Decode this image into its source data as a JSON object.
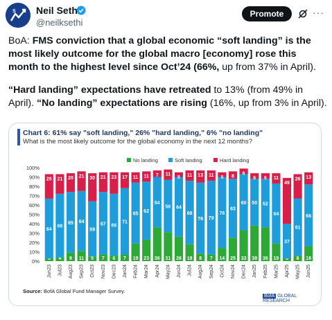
{
  "header": {
    "author_name": "Neil Sethi",
    "author_handle": "@neilksethi",
    "promote_label": "Promote",
    "more_label": "···"
  },
  "tweet": {
    "p1_pre": "BoA: ",
    "p1_bold1": "FMS conviction that a global economic “soft landing” is the most likely outcome for the global macro [economy] rose this month to the  highest level since Oct’24 (66%,",
    "p1_post": " up from 37%  in April).",
    "p2_bold1": "“Hard landing” expectations have retreated",
    "p2_mid": " to 13% (from 49% in April).  ",
    "p2_bold2": "“No landing” expectations are rising",
    "p2_post": " (16%, up from 3% in April)."
  },
  "chart_card": {
    "title": "Chart 6: 61% say \"soft landing,\" 26% \"hard landing,\" 6% \"no landing\"",
    "subtitle": "What is the most likely outcome for the global economy in the next 12 months?",
    "source_label": "Source:",
    "source_text": " BofA Global Fund Manager Survey.",
    "brand_boa": "BofA",
    "brand_rest": " GLOBAL RESEARCH"
  },
  "chart_data": {
    "type": "bar",
    "stacked": true,
    "categories": [
      "Jun23",
      "Jul23",
      "Aug23",
      "Sep23",
      "Oct23",
      "Nov23",
      "Dec23",
      "Jan24",
      "Feb24",
      "Mar24",
      "Apr24",
      "May24",
      "Jun24",
      "Jul24",
      "Aug24",
      "Sep24",
      "Oct24",
      "Nov24",
      "Dec24",
      "Jan25",
      "Feb25",
      "Mar25",
      "Apr25",
      "May25",
      "Jun25"
    ],
    "series": [
      {
        "name": "No landing",
        "color": "#2ea836",
        "values": [
          3,
          4,
          9,
          11,
          5,
          7,
          6,
          7,
          19,
          23,
          36,
          31,
          26,
          18,
          8,
          7,
          14,
          25,
          33,
          38,
          36,
          19,
          3,
          6,
          16
        ]
      },
      {
        "name": "Soft landing",
        "color": "#1f9ddb",
        "values": [
          64,
          68,
          65,
          64,
          59,
          67,
          66,
          71,
          65,
          62,
          54,
          56,
          64,
          68,
          76,
          79,
          76,
          63,
          60,
          50,
          52,
          64,
          37,
          61,
          66
        ]
      },
      {
        "name": "Hard landing",
        "color": "#d6204a",
        "values": [
          26,
          21,
          20,
          21,
          30,
          21,
          23,
          17,
          11,
          11,
          7,
          11,
          5,
          11,
          13,
          11,
          5,
          8,
          6,
          6,
          6,
          11,
          49,
          26,
          13
        ]
      }
    ],
    "bar_labels": [
      [
        3,
        4,
        9,
        11,
        5,
        7,
        6,
        7,
        19,
        23,
        36,
        31,
        26,
        18,
        8,
        7,
        14,
        25,
        33,
        38,
        36,
        19,
        3,
        6,
        16
      ],
      [
        64,
        68,
        65,
        64,
        59,
        67,
        66,
        71,
        65,
        62,
        54,
        56,
        64,
        68,
        76,
        79,
        76,
        63,
        60,
        50,
        52,
        64,
        37,
        61,
        66
      ],
      [
        26,
        21,
        20,
        21,
        30,
        21,
        23,
        17,
        11,
        11,
        7,
        11,
        5,
        11,
        13,
        11,
        5,
        8,
        6,
        6,
        6,
        11,
        49,
        26,
        13
      ]
    ],
    "ylim": [
      0,
      100
    ],
    "y_ticks": [
      "0%",
      "10%",
      "20%",
      "30%",
      "40%",
      "50%",
      "60%",
      "70%",
      "80%",
      "90%",
      "100%"
    ],
    "legend_position": "top-center",
    "grid": false
  }
}
